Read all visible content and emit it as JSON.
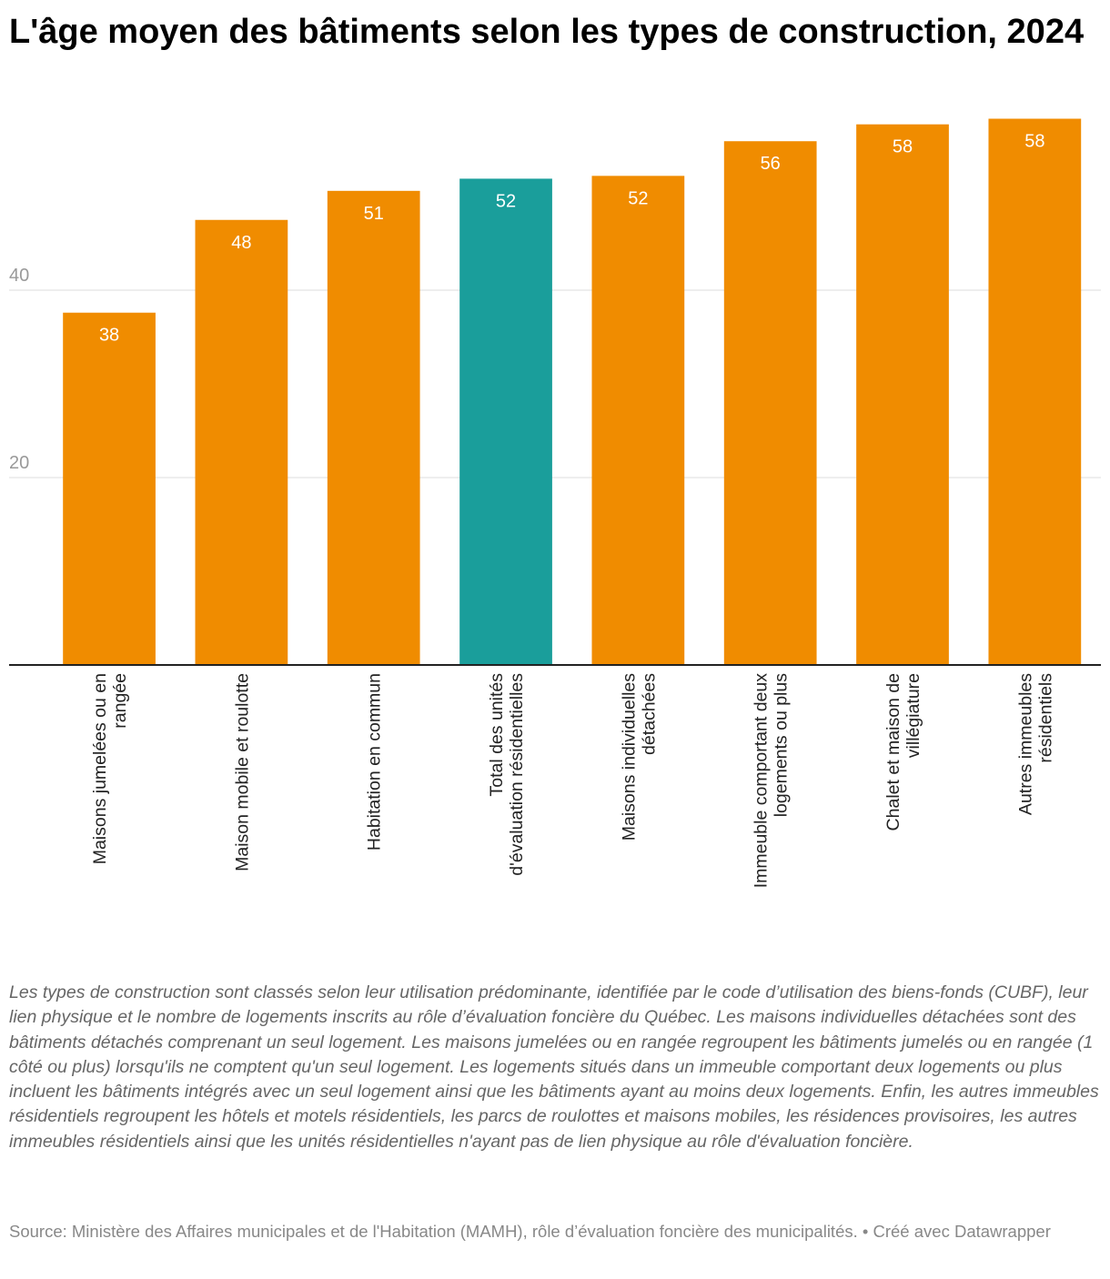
{
  "chart_data": {
    "type": "bar",
    "title": "L'âge moyen des bâtiments selon les types de construction, 2024",
    "categories": [
      "Maisons jumelées ou en\nrangée",
      "Maison mobile et roulotte",
      "Habitation en commun",
      "Total des unités\nd'évaluation résidentielles",
      "Maisons individuelles\ndétachées",
      "Immeuble comportant deux\nlogements ou plus",
      "Chalet et maison de\nvillégiature",
      "Autres immeubles\nrésidentiels"
    ],
    "values": [
      37.6,
      47.5,
      50.6,
      51.9,
      52.2,
      55.9,
      57.7,
      58.3
    ],
    "value_labels": [
      "38",
      "48",
      "51",
      "52",
      "52",
      "56",
      "58",
      "58"
    ],
    "colors": [
      "#f08c00",
      "#f08c00",
      "#f08c00",
      "#1a9e9b",
      "#f08c00",
      "#f08c00",
      "#f08c00",
      "#f08c00"
    ],
    "ylim": [
      0,
      60
    ],
    "yticks": [
      20,
      40
    ],
    "grid": true,
    "notes": "Les types de construction sont classés selon leur utilisation prédominante, identifiée par le code d’utilisation des biens-fonds (CUBF), leur lien physique et le nombre de logements inscrits au rôle d’évaluation foncière du Québec. Les maisons individuelles détachées sont des bâtiments détachés comprenant un seul logement. Les maisons jumelées ou en rangée regroupent les bâtiments jumelés ou en rangée (1 côté ou plus) lorsqu'ils ne comptent qu'un seul logement. Les logements situés dans un immeuble comportant deux logements ou plus incluent les bâtiments intégrés avec un seul logement ainsi que les bâtiments ayant au moins deux logements. Enfin, les autres immeubles résidentiels regroupent les hôtels et motels résidentiels, les parcs de roulottes et maisons mobiles, les résidences provisoires, les autres immeubles résidentiels ainsi que les unités résidentielles n'ayant pas de lien physique au rôle d'évaluation foncière.",
    "source": "Source: Ministère des Affaires municipales et de l'Habitation (MAMH), rôle d’évaluation foncière des municipalités. • Créé avec Datawrapper"
  }
}
